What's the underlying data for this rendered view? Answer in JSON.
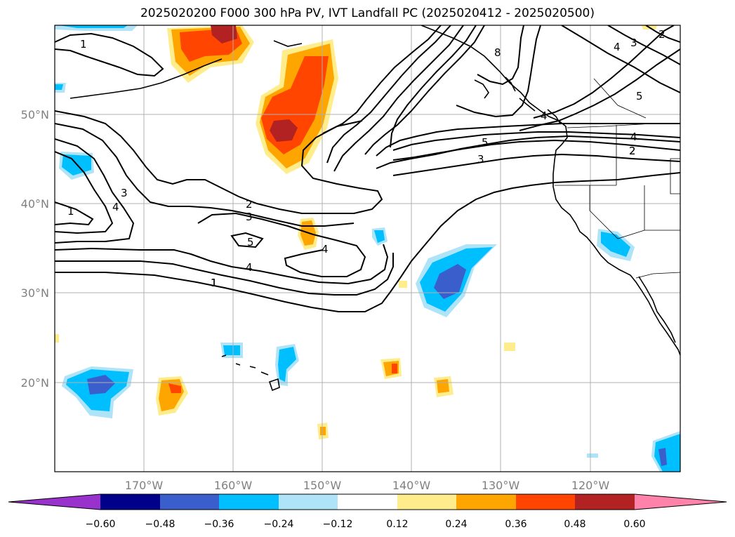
{
  "title": "2025020200 F000 300 hPa PV, IVT Landfall PC (2025020412 - 2025020500)",
  "lon_labels": [
    "170°W",
    "160°W",
    "150°W",
    "140°W",
    "130°W",
    "120°W"
  ],
  "lat_labels": [
    "50°N",
    "40°N",
    "30°N",
    "20°N"
  ],
  "colorbar": {
    "ticks": [
      "−0.60",
      "−0.48",
      "−0.36",
      "−0.24",
      "−0.12",
      "0.12",
      "0.24",
      "0.36",
      "0.48",
      "0.60"
    ],
    "colors": [
      "#9932cc",
      "#00008b",
      "#3a5fcd",
      "#00bfff",
      "#aee3f8",
      "#ffffff",
      "#ffec8b",
      "#ffa500",
      "#ff4500",
      "#b22222",
      "#ff82ab"
    ]
  },
  "contour_labels": [
    "1",
    "2",
    "3",
    "4",
    "5",
    "1",
    "2",
    "3",
    "4",
    "5",
    "4",
    "3",
    "2",
    "4",
    "1",
    "2",
    "3",
    "4",
    "5",
    "8",
    "1",
    "4"
  ]
}
